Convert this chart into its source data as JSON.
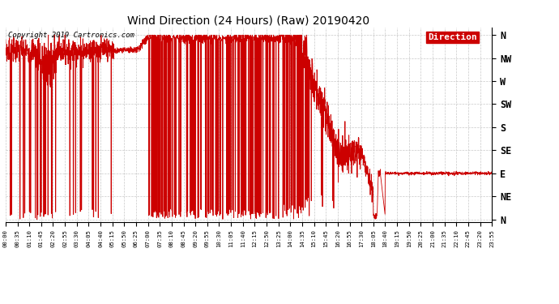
{
  "title": "Wind Direction (24 Hours) (Raw) 20190420",
  "copyright_text": "Copyright 2019 Cartronics.com",
  "background_color": "#ffffff",
  "plot_bg_color": "#ffffff",
  "line_color": "#cc0000",
  "grid_color": "#bbbbbb",
  "ytick_labels": [
    "N",
    "NW",
    "W",
    "SW",
    "S",
    "SE",
    "E",
    "NE",
    "N"
  ],
  "ytick_values": [
    360,
    315,
    270,
    225,
    180,
    135,
    90,
    45,
    0
  ],
  "legend_label": "Direction",
  "legend_bg": "#cc0000",
  "legend_text_color": "#ffffff",
  "xtick_labels": [
    "00:00",
    "00:35",
    "01:10",
    "01:45",
    "02:20",
    "02:55",
    "03:30",
    "04:05",
    "04:40",
    "05:15",
    "05:50",
    "06:25",
    "07:00",
    "07:35",
    "08:10",
    "08:45",
    "09:20",
    "09:55",
    "10:30",
    "11:05",
    "11:40",
    "12:15",
    "12:50",
    "13:25",
    "14:00",
    "14:35",
    "15:10",
    "15:45",
    "16:20",
    "16:55",
    "17:30",
    "18:05",
    "18:40",
    "19:15",
    "19:50",
    "20:25",
    "21:00",
    "21:35",
    "22:10",
    "22:45",
    "23:20",
    "23:55"
  ],
  "xlim_minutes": [
    0,
    1435
  ],
  "ylim": [
    -5,
    375
  ]
}
